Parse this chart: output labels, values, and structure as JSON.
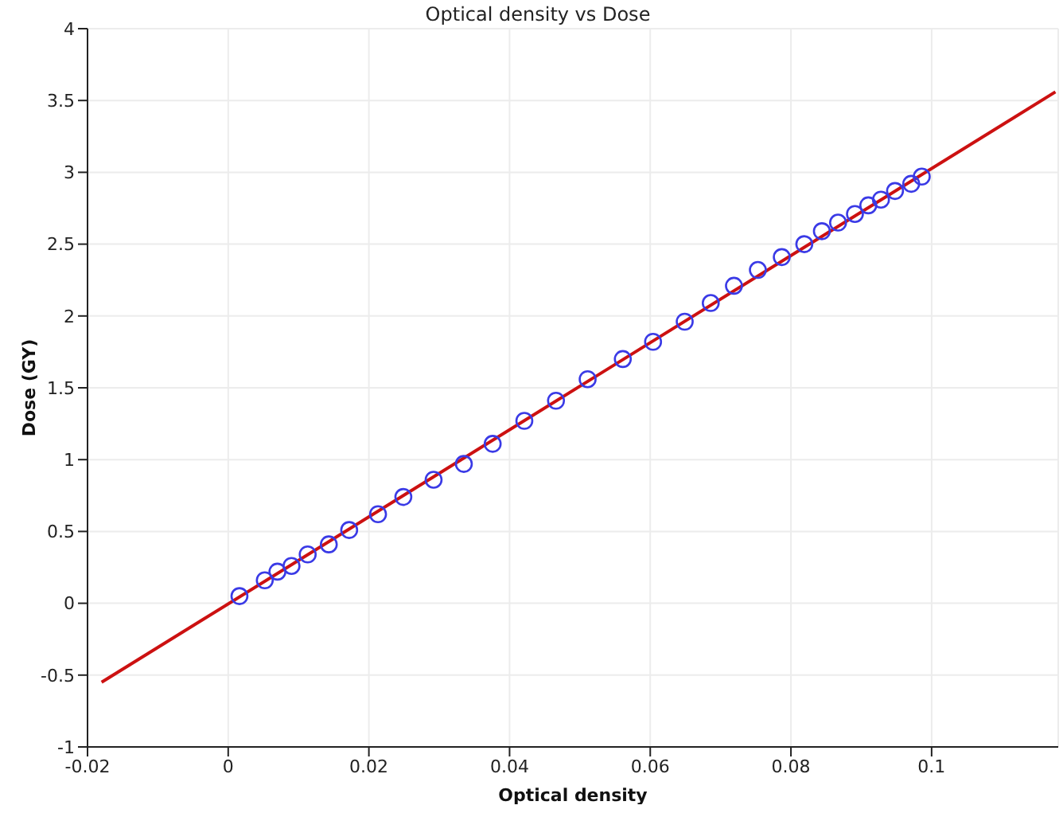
{
  "chart_data": {
    "type": "scatter",
    "title": "Optical density vs Dose",
    "xlabel": "Optical density",
    "ylabel": "Dose (GY)",
    "xlim": [
      -0.02,
      0.118
    ],
    "xticks": [
      -0.02,
      0,
      0.02,
      0.04,
      0.06,
      0.08,
      0.1
    ],
    "ylim": [
      -1,
      4
    ],
    "yticks": [
      -1,
      -0.5,
      0,
      0.5,
      1,
      1.5,
      2,
      2.5,
      3,
      3.5,
      4
    ],
    "grid": true,
    "marker": "circle",
    "series": [
      {
        "color": "#3a3ae6",
        "x": [
          0.0016,
          0.0052,
          0.007,
          0.009,
          0.0113,
          0.0143,
          0.0172,
          0.0213,
          0.0249,
          0.0292,
          0.0335,
          0.0376,
          0.0421,
          0.0466,
          0.0511,
          0.0561,
          0.0604,
          0.0649,
          0.0686,
          0.0719,
          0.0753,
          0.0787,
          0.0819,
          0.0844,
          0.0867,
          0.0891,
          0.091,
          0.0928,
          0.0948,
          0.0971,
          0.0986
        ],
        "values": [
          0.05,
          0.16,
          0.22,
          0.26,
          0.34,
          0.41,
          0.51,
          0.62,
          0.74,
          0.86,
          0.97,
          1.11,
          1.27,
          1.41,
          1.56,
          1.7,
          1.82,
          1.96,
          2.09,
          2.21,
          2.32,
          2.41,
          2.5,
          2.59,
          2.65,
          2.71,
          2.77,
          2.81,
          2.87,
          2.92,
          2.97
        ]
      },
      {
        "type": "line",
        "color": "#cc1111",
        "marker": "none",
        "x": [
          -0.018,
          0.1176
        ],
        "values": [
          -0.55,
          3.56
        ]
      }
    ]
  }
}
